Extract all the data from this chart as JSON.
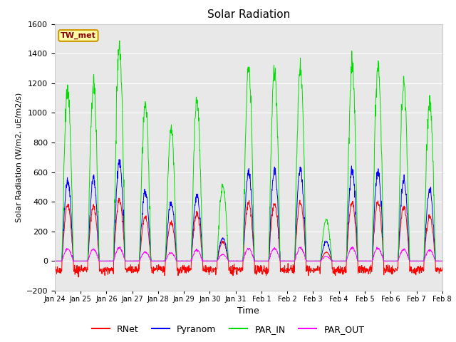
{
  "title": "Solar Radiation",
  "xlabel": "Time",
  "ylabel": "Solar Radiation (W/m2, uE/m2/s)",
  "ylim": [
    -200,
    1600
  ],
  "yticks": [
    -200,
    0,
    200,
    400,
    600,
    800,
    1000,
    1200,
    1400,
    1600
  ],
  "site_label": "TW_met",
  "colors": {
    "RNet": "#ff0000",
    "Pyranom": "#0000ff",
    "PAR_IN": "#00dd00",
    "PAR_OUT": "#ff00ff"
  },
  "fig_bg": "#ffffff",
  "plot_bg": "#e8e8e8",
  "grid_color": "#ffffff",
  "n_days": 15,
  "par_in_peaks": [
    1160,
    1190,
    1450,
    1050,
    890,
    1080,
    510,
    1300,
    1290,
    1300,
    280,
    1330,
    1310,
    1200,
    1090
  ],
  "pyranom_peaks": [
    540,
    555,
    665,
    470,
    390,
    440,
    155,
    600,
    615,
    620,
    130,
    615,
    600,
    550,
    480
  ],
  "rnet_peaks": [
    380,
    370,
    420,
    300,
    260,
    320,
    130,
    400,
    390,
    395,
    60,
    400,
    395,
    370,
    300
  ],
  "par_out_peaks": [
    80,
    80,
    90,
    60,
    55,
    75,
    45,
    85,
    85,
    90,
    30,
    90,
    90,
    80,
    75
  ],
  "xtick_labels": [
    "Jan 24",
    "Jan 25",
    "Jan 26",
    "Jan 27",
    "Jan 28",
    "Jan 29",
    "Jan 30",
    "Jan 31",
    "Feb 1",
    "Feb 2",
    "Feb 3",
    "Feb 4",
    "Feb 5",
    "Feb 6",
    "Feb 7",
    "Feb 8"
  ]
}
